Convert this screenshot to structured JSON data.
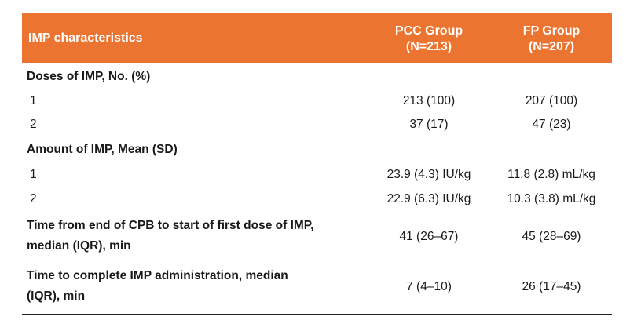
{
  "header": {
    "label": "IMP characteristics",
    "col1_line1": "PCC Group",
    "col1_line2": "(N=213)",
    "col2_line1": "FP Group",
    "col2_line2": "(N=207)"
  },
  "rows": [
    {
      "label": "Doses of IMP, No. (%)",
      "c1": "",
      "c2": ""
    },
    {
      "label": "1",
      "c1": "213 (100)",
      "c2": "207 (100)"
    },
    {
      "label": "2",
      "c1": "37 (17)",
      "c2": "47 (23)"
    },
    {
      "label": "Amount of IMP, Mean (SD)",
      "c1": "",
      "c2": ""
    },
    {
      "label": "1",
      "c1": "23.9 (4.3) IU/kg",
      "c2": "11.8 (2.8) mL/kg"
    },
    {
      "label": "2",
      "c1": "22.9 (6.3) IU/kg",
      "c2": "10.3 (3.8) mL/kg"
    },
    {
      "label_line1": "Time from end of CPB to start of first dose of IMP,",
      "label_line2": "median (IQR), min",
      "c1": "41 (26–67)",
      "c2": "45 (28–69)"
    },
    {
      "label_line1": "Time to complete IMP administration, median",
      "label_line2": "(IQR), min",
      "c1": "7 (4–10)",
      "c2": "26 (17–45)"
    }
  ]
}
